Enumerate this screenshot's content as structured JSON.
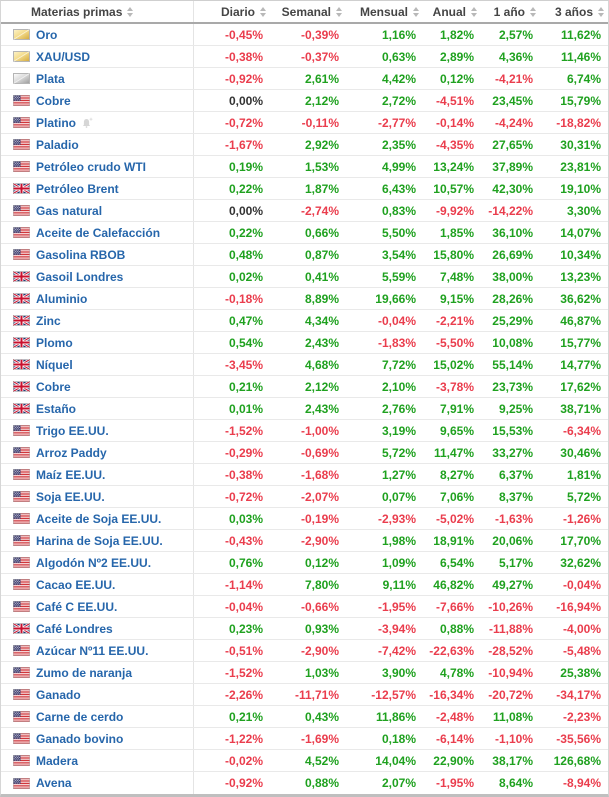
{
  "colors": {
    "positive": "#1fa11f",
    "negative": "#ea3d4d",
    "neutral": "#333333",
    "link_blue": "#2666ab",
    "header_text": "#454545"
  },
  "table": {
    "name_header": {
      "label": "Materias primas",
      "sort_icon": "sort-arrows-icon"
    },
    "columns": [
      {
        "label": "Diario"
      },
      {
        "label": "Semanal"
      },
      {
        "label": "Mensual"
      },
      {
        "label": "Anual"
      },
      {
        "label": "1 año"
      },
      {
        "label": "3 años"
      }
    ],
    "rows": [
      {
        "icon": "gold-bar-icon",
        "name": "Oro",
        "values": [
          "-0,45%",
          "-0,39%",
          "1,16%",
          "1,82%",
          "2,57%",
          "11,62%"
        ]
      },
      {
        "icon": "gold-bar-icon",
        "name": "XAU/USD",
        "values": [
          "-0,38%",
          "-0,37%",
          "0,63%",
          "2,89%",
          "4,36%",
          "11,46%"
        ]
      },
      {
        "icon": "silver-bar-icon",
        "name": "Plata",
        "values": [
          "-0,92%",
          "2,61%",
          "4,42%",
          "0,12%",
          "-4,21%",
          "6,74%"
        ]
      },
      {
        "icon": "us-flag-icon",
        "name": "Cobre",
        "values": [
          "0,00%",
          "2,12%",
          "2,72%",
          "-4,51%",
          "23,45%",
          "15,79%"
        ]
      },
      {
        "icon": "us-flag-icon",
        "name": "Platino",
        "alert_icon": "add-alert-bell-icon",
        "values": [
          "-0,72%",
          "-0,11%",
          "-2,77%",
          "-0,14%",
          "-4,24%",
          "-18,82%"
        ]
      },
      {
        "icon": "us-flag-icon",
        "name": "Paladio",
        "values": [
          "-1,67%",
          "2,92%",
          "2,35%",
          "-4,35%",
          "27,65%",
          "30,31%"
        ]
      },
      {
        "icon": "us-flag-icon",
        "name": "Petróleo crudo WTI",
        "values": [
          "0,19%",
          "1,53%",
          "4,99%",
          "13,24%",
          "37,89%",
          "23,81%"
        ]
      },
      {
        "icon": "uk-flag-icon",
        "name": "Petróleo Brent",
        "values": [
          "0,22%",
          "1,87%",
          "6,43%",
          "10,57%",
          "42,30%",
          "19,10%"
        ]
      },
      {
        "icon": "us-flag-icon",
        "name": "Gas natural",
        "values": [
          "0,00%",
          "-2,74%",
          "0,83%",
          "-9,92%",
          "-14,22%",
          "3,30%"
        ]
      },
      {
        "icon": "us-flag-icon",
        "name": "Aceite de Calefacción",
        "values": [
          "0,22%",
          "0,66%",
          "5,50%",
          "1,85%",
          "36,10%",
          "14,07%"
        ]
      },
      {
        "icon": "us-flag-icon",
        "name": "Gasolina RBOB",
        "values": [
          "0,48%",
          "0,87%",
          "3,54%",
          "15,80%",
          "26,69%",
          "10,34%"
        ]
      },
      {
        "icon": "uk-flag-icon",
        "name": "Gasoil Londres",
        "values": [
          "0,02%",
          "0,41%",
          "5,59%",
          "7,48%",
          "38,00%",
          "13,23%"
        ]
      },
      {
        "icon": "uk-flag-icon",
        "name": "Aluminio",
        "values": [
          "-0,18%",
          "8,89%",
          "19,66%",
          "9,15%",
          "28,26%",
          "36,62%"
        ]
      },
      {
        "icon": "uk-flag-icon",
        "name": "Zinc",
        "values": [
          "0,47%",
          "4,34%",
          "-0,04%",
          "-2,21%",
          "25,29%",
          "46,87%"
        ]
      },
      {
        "icon": "uk-flag-icon",
        "name": "Plomo",
        "values": [
          "0,54%",
          "2,43%",
          "-1,83%",
          "-5,50%",
          "10,08%",
          "15,77%"
        ]
      },
      {
        "icon": "uk-flag-icon",
        "name": "Níquel",
        "values": [
          "-3,45%",
          "4,68%",
          "7,72%",
          "15,02%",
          "55,14%",
          "14,77%"
        ]
      },
      {
        "icon": "uk-flag-icon",
        "name": "Cobre",
        "values": [
          "0,21%",
          "2,12%",
          "2,10%",
          "-3,78%",
          "23,73%",
          "17,62%"
        ]
      },
      {
        "icon": "uk-flag-icon",
        "name": "Estaño",
        "values": [
          "0,01%",
          "2,43%",
          "2,76%",
          "7,91%",
          "9,25%",
          "38,71%"
        ]
      },
      {
        "icon": "us-flag-icon",
        "name": "Trigo EE.UU.",
        "values": [
          "-1,52%",
          "-1,00%",
          "3,19%",
          "9,65%",
          "15,53%",
          "-6,34%"
        ]
      },
      {
        "icon": "us-flag-icon",
        "name": "Arroz Paddy",
        "values": [
          "-0,29%",
          "-0,69%",
          "5,72%",
          "11,47%",
          "33,27%",
          "30,46%"
        ]
      },
      {
        "icon": "us-flag-icon",
        "name": "Maíz EE.UU.",
        "values": [
          "-0,38%",
          "-1,68%",
          "1,27%",
          "8,27%",
          "6,37%",
          "1,81%"
        ]
      },
      {
        "icon": "us-flag-icon",
        "name": "Soja EE.UU.",
        "values": [
          "-0,72%",
          "-2,07%",
          "0,07%",
          "7,06%",
          "8,37%",
          "5,72%"
        ]
      },
      {
        "icon": "us-flag-icon",
        "name": "Aceite de Soja EE.UU.",
        "values": [
          "0,03%",
          "-0,19%",
          "-2,93%",
          "-5,02%",
          "-1,63%",
          "-1,26%"
        ]
      },
      {
        "icon": "us-flag-icon",
        "name": "Harina de Soja EE.UU.",
        "values": [
          "-0,43%",
          "-2,90%",
          "1,98%",
          "18,91%",
          "20,06%",
          "17,70%"
        ]
      },
      {
        "icon": "us-flag-icon",
        "name": "Algodón Nº2 EE.UU.",
        "values": [
          "0,76%",
          "0,12%",
          "1,09%",
          "6,54%",
          "5,17%",
          "32,62%"
        ]
      },
      {
        "icon": "us-flag-icon",
        "name": "Cacao EE.UU.",
        "values": [
          "-1,14%",
          "7,80%",
          "9,11%",
          "46,82%",
          "49,27%",
          "-0,04%"
        ]
      },
      {
        "icon": "us-flag-icon",
        "name": "Café C EE.UU.",
        "values": [
          "-0,04%",
          "-0,66%",
          "-1,95%",
          "-7,66%",
          "-10,26%",
          "-16,94%"
        ]
      },
      {
        "icon": "uk-flag-icon",
        "name": "Café Londres",
        "values": [
          "0,23%",
          "0,93%",
          "-3,94%",
          "0,88%",
          "-11,88%",
          "-4,00%"
        ]
      },
      {
        "icon": "us-flag-icon",
        "name": "Azúcar Nº11 EE.UU.",
        "values": [
          "-0,51%",
          "-2,90%",
          "-7,42%",
          "-22,63%",
          "-28,52%",
          "-5,48%"
        ]
      },
      {
        "icon": "us-flag-icon",
        "name": "Zumo de naranja",
        "values": [
          "-1,52%",
          "1,03%",
          "3,90%",
          "4,78%",
          "-10,94%",
          "25,38%"
        ]
      },
      {
        "icon": "us-flag-icon",
        "name": "Ganado",
        "values": [
          "-2,26%",
          "-11,71%",
          "-12,57%",
          "-16,34%",
          "-20,72%",
          "-34,17%"
        ]
      },
      {
        "icon": "us-flag-icon",
        "name": "Carne de cerdo",
        "values": [
          "0,21%",
          "0,43%",
          "11,86%",
          "-2,48%",
          "11,08%",
          "-2,23%"
        ]
      },
      {
        "icon": "us-flag-icon",
        "name": "Ganado bovino",
        "values": [
          "-1,22%",
          "-1,69%",
          "0,18%",
          "-6,14%",
          "-1,10%",
          "-35,56%"
        ]
      },
      {
        "icon": "us-flag-icon",
        "name": "Madera",
        "values": [
          "-0,02%",
          "4,52%",
          "14,04%",
          "22,90%",
          "38,17%",
          "126,68%"
        ]
      },
      {
        "icon": "us-flag-icon",
        "name": "Avena",
        "values": [
          "-0,92%",
          "0,88%",
          "2,07%",
          "-1,95%",
          "8,64%",
          "-8,94%"
        ]
      }
    ]
  }
}
